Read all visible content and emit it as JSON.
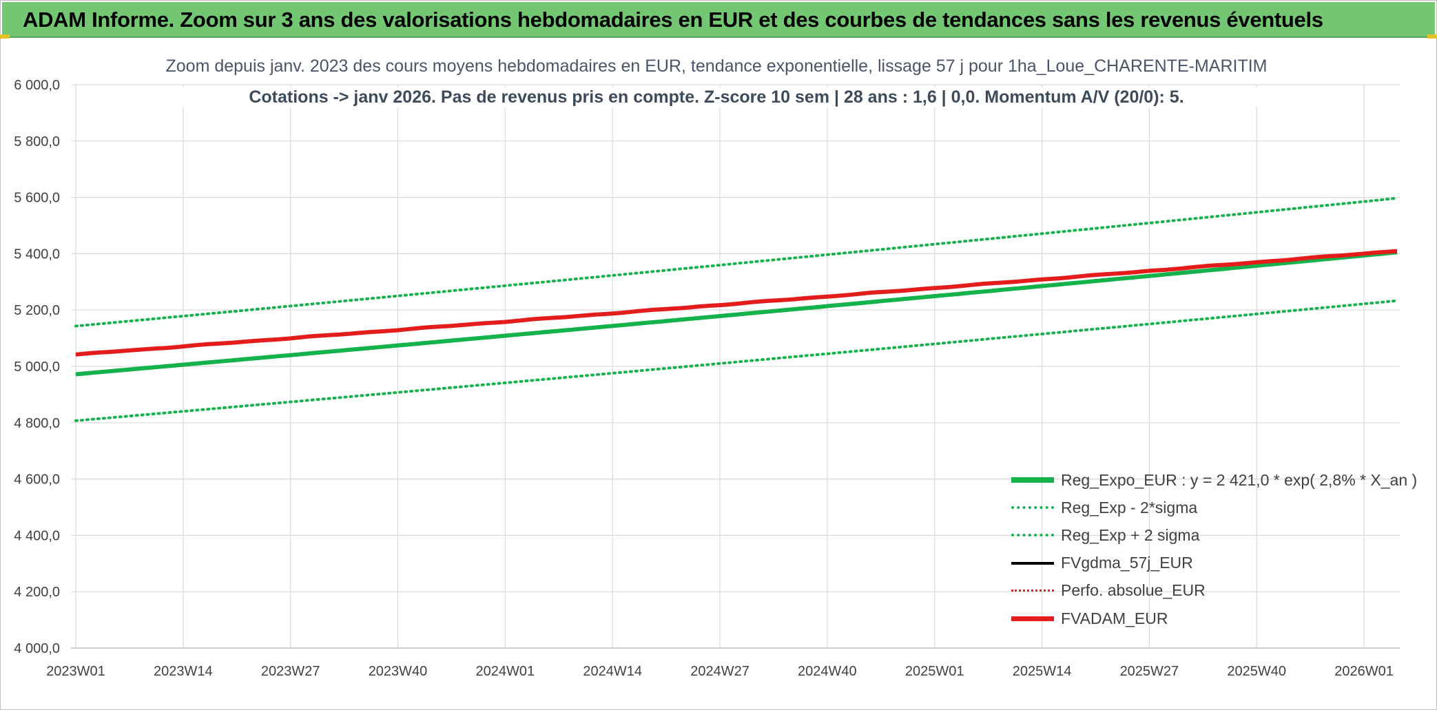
{
  "banner": {
    "title": "ADAM Informe. Zoom sur 3 ans des valorisations hebdomadaires en EUR et des courbes de tendances sans les revenus éventuels"
  },
  "colors": {
    "banner_bg": "#73c773",
    "reg_expo": "#13b24a",
    "sigma_bands": "#13b24a",
    "fvgdma": "#000000",
    "perfo": "#e02020",
    "fvadam": "#e51c1c",
    "grid": "#d9d9d9"
  },
  "chart_data": {
    "type": "line",
    "title_line1": "Zoom depuis janv. 2023 des cours moyens hebdomadaires en EUR, tendance exponentielle, lissage 57 j pour 1ha_Loue_CHARENTE-MARITIM",
    "title_line2": "Cotations -> janv 2026. Pas de revenus pris en compte. Z-score 10 sem | 28 ans : 1,6 | 0,0. Momentum A/V (20/0): 5.",
    "ylim": [
      4000,
      6000
    ],
    "y_ticks": [
      "4 000,0",
      "4 200,0",
      "4 400,0",
      "4 600,0",
      "4 800,0",
      "5 000,0",
      "5 200,0",
      "5 400,0",
      "5 600,0",
      "5 800,0",
      "6 000,0"
    ],
    "x_ticks": [
      "2023W01",
      "2023W14",
      "2023W27",
      "2023W40",
      "2024W01",
      "2024W14",
      "2024W27",
      "2024W40",
      "2025W01",
      "2025W14",
      "2025W27",
      "2025W40",
      "2026W01"
    ],
    "x_tick_week_index": [
      0,
      13,
      26,
      39,
      52,
      65,
      78,
      91,
      104,
      117,
      130,
      143,
      156
    ],
    "n_weeks": 161,
    "grid": true,
    "legend_position": "bottom-right",
    "series": [
      {
        "name": "Reg_Expo_EUR : y = 2 421,0 * exp( 2,8% *  X_an )",
        "style": "solid-thick",
        "start": 4972,
        "end": 5405
      },
      {
        "name": "Reg_Exp - 2*sigma",
        "style": "dotted",
        "start": 4807,
        "end": 5233
      },
      {
        "name": "Reg_Exp + 2 sigma",
        "style": "dotted",
        "start": 5143,
        "end": 5597
      },
      {
        "name": "FVgdma_57j_EUR",
        "style": "solid-thin",
        "start": 5042,
        "end": 5410
      },
      {
        "name": "Perfo. absolue_EUR",
        "style": "dotted",
        "start": 5042,
        "end": 5410
      },
      {
        "name": "FVADAM_EUR",
        "style": "solid-thick",
        "start": 5042,
        "end": 5410
      }
    ]
  }
}
